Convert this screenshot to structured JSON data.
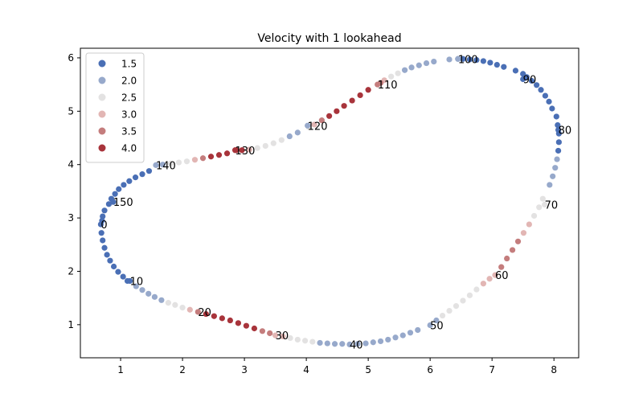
{
  "chart_data": {
    "type": "scatter",
    "title": "Velocity with 1 lookahead",
    "xlabel": "",
    "ylabel": "",
    "xlim": [
      0.35,
      8.4
    ],
    "ylim": [
      0.38,
      6.18
    ],
    "xticks": [
      1,
      2,
      3,
      4,
      5,
      6,
      7,
      8
    ],
    "yticks": [
      1,
      2,
      3,
      4,
      5,
      6
    ],
    "grid": false,
    "legend_position": "upper-left",
    "legend": [
      {
        "label": "1.5",
        "value": 1.5,
        "color": "#4a6fb5"
      },
      {
        "label": "2.0",
        "value": 2.0,
        "color": "#97a9cb"
      },
      {
        "label": "2.5",
        "value": 2.5,
        "color": "#e3e2e2"
      },
      {
        "label": "3.0",
        "value": 3.0,
        "color": "#e2b6b4"
      },
      {
        "label": "3.5",
        "value": 3.5,
        "color": "#c47d7d"
      },
      {
        "label": "4.0",
        "value": 4.0,
        "color": "#a8343b"
      }
    ],
    "annotations": [
      {
        "label": "0",
        "x": 0.68,
        "y": 2.88
      },
      {
        "label": "10",
        "x": 1.15,
        "y": 1.82
      },
      {
        "label": "20",
        "x": 2.25,
        "y": 1.24
      },
      {
        "label": "30",
        "x": 3.5,
        "y": 0.8
      },
      {
        "label": "40",
        "x": 4.7,
        "y": 0.63
      },
      {
        "label": "50",
        "x": 6.0,
        "y": 0.99
      },
      {
        "label": "60",
        "x": 7.05,
        "y": 1.93
      },
      {
        "label": "70",
        "x": 7.85,
        "y": 3.25
      },
      {
        "label": "80",
        "x": 8.07,
        "y": 4.65
      },
      {
        "label": "90",
        "x": 7.5,
        "y": 5.6
      },
      {
        "label": "100",
        "x": 6.45,
        "y": 5.98
      },
      {
        "label": "110",
        "x": 5.15,
        "y": 5.5
      },
      {
        "label": "120",
        "x": 4.02,
        "y": 4.73
      },
      {
        "label": "130",
        "x": 2.85,
        "y": 4.27
      },
      {
        "label": "140",
        "x": 1.57,
        "y": 3.99
      },
      {
        "label": "150",
        "x": 0.88,
        "y": 3.3
      }
    ],
    "points": [
      {
        "x": 0.68,
        "y": 2.88,
        "v": 1.5
      },
      {
        "x": 0.69,
        "y": 2.72,
        "v": 1.5
      },
      {
        "x": 0.71,
        "y": 2.58,
        "v": 1.5
      },
      {
        "x": 0.74,
        "y": 2.44,
        "v": 1.5
      },
      {
        "x": 0.78,
        "y": 2.31,
        "v": 1.5
      },
      {
        "x": 0.83,
        "y": 2.2,
        "v": 1.5
      },
      {
        "x": 0.89,
        "y": 2.09,
        "v": 1.5
      },
      {
        "x": 0.96,
        "y": 1.99,
        "v": 1.5
      },
      {
        "x": 1.04,
        "y": 1.9,
        "v": 1.5
      },
      {
        "x": 1.11,
        "y": 1.82,
        "v": 1.5
      },
      {
        "x": 1.15,
        "y": 1.82,
        "v": 1.5
      },
      {
        "x": 1.25,
        "y": 1.72,
        "v": 2.0
      },
      {
        "x": 1.35,
        "y": 1.65,
        "v": 2.0
      },
      {
        "x": 1.45,
        "y": 1.58,
        "v": 2.0
      },
      {
        "x": 1.55,
        "y": 1.52,
        "v": 2.0
      },
      {
        "x": 1.66,
        "y": 1.46,
        "v": 2.0
      },
      {
        "x": 1.77,
        "y": 1.41,
        "v": 2.5
      },
      {
        "x": 1.88,
        "y": 1.37,
        "v": 2.5
      },
      {
        "x": 2.0,
        "y": 1.32,
        "v": 2.5
      },
      {
        "x": 2.12,
        "y": 1.28,
        "v": 3.0
      },
      {
        "x": 2.25,
        "y": 1.24,
        "v": 3.5
      },
      {
        "x": 2.38,
        "y": 1.2,
        "v": 4.0
      },
      {
        "x": 2.51,
        "y": 1.16,
        "v": 4.0
      },
      {
        "x": 2.64,
        "y": 1.12,
        "v": 4.0
      },
      {
        "x": 2.77,
        "y": 1.08,
        "v": 4.0
      },
      {
        "x": 2.9,
        "y": 1.03,
        "v": 4.0
      },
      {
        "x": 3.03,
        "y": 0.98,
        "v": 4.0
      },
      {
        "x": 3.16,
        "y": 0.93,
        "v": 4.0
      },
      {
        "x": 3.29,
        "y": 0.88,
        "v": 3.5
      },
      {
        "x": 3.41,
        "y": 0.84,
        "v": 3.5
      },
      {
        "x": 3.5,
        "y": 0.8,
        "v": 3.0
      },
      {
        "x": 3.62,
        "y": 0.78,
        "v": 3.0
      },
      {
        "x": 3.74,
        "y": 0.75,
        "v": 2.5
      },
      {
        "x": 3.86,
        "y": 0.72,
        "v": 2.5
      },
      {
        "x": 3.98,
        "y": 0.7,
        "v": 2.5
      },
      {
        "x": 4.1,
        "y": 0.68,
        "v": 2.5
      },
      {
        "x": 4.22,
        "y": 0.66,
        "v": 2.0
      },
      {
        "x": 4.34,
        "y": 0.65,
        "v": 2.0
      },
      {
        "x": 4.46,
        "y": 0.64,
        "v": 2.0
      },
      {
        "x": 4.58,
        "y": 0.64,
        "v": 2.0
      },
      {
        "x": 4.7,
        "y": 0.63,
        "v": 2.0
      },
      {
        "x": 4.83,
        "y": 0.64,
        "v": 2.0
      },
      {
        "x": 4.96,
        "y": 0.65,
        "v": 2.0
      },
      {
        "x": 5.08,
        "y": 0.67,
        "v": 2.0
      },
      {
        "x": 5.2,
        "y": 0.69,
        "v": 2.0
      },
      {
        "x": 5.32,
        "y": 0.72,
        "v": 2.0
      },
      {
        "x": 5.44,
        "y": 0.76,
        "v": 2.0
      },
      {
        "x": 5.56,
        "y": 0.8,
        "v": 2.0
      },
      {
        "x": 5.68,
        "y": 0.85,
        "v": 2.0
      },
      {
        "x": 5.8,
        "y": 0.9,
        "v": 2.0
      },
      {
        "x": 6.0,
        "y": 0.99,
        "v": 2.0
      },
      {
        "x": 6.1,
        "y": 1.08,
        "v": 2.0
      },
      {
        "x": 6.2,
        "y": 1.17,
        "v": 2.5
      },
      {
        "x": 6.31,
        "y": 1.26,
        "v": 2.5
      },
      {
        "x": 6.42,
        "y": 1.35,
        "v": 2.5
      },
      {
        "x": 6.53,
        "y": 1.45,
        "v": 2.5
      },
      {
        "x": 6.64,
        "y": 1.55,
        "v": 2.5
      },
      {
        "x": 6.75,
        "y": 1.66,
        "v": 2.5
      },
      {
        "x": 6.86,
        "y": 1.77,
        "v": 3.0
      },
      {
        "x": 6.96,
        "y": 1.86,
        "v": 3.0
      },
      {
        "x": 7.05,
        "y": 1.93,
        "v": 3.0
      },
      {
        "x": 7.15,
        "y": 2.08,
        "v": 3.5
      },
      {
        "x": 7.24,
        "y": 2.24,
        "v": 3.5
      },
      {
        "x": 7.33,
        "y": 2.4,
        "v": 3.5
      },
      {
        "x": 7.42,
        "y": 2.56,
        "v": 3.5
      },
      {
        "x": 7.51,
        "y": 2.72,
        "v": 3.0
      },
      {
        "x": 7.6,
        "y": 2.88,
        "v": 3.0
      },
      {
        "x": 7.68,
        "y": 3.04,
        "v": 2.5
      },
      {
        "x": 7.76,
        "y": 3.2,
        "v": 2.5
      },
      {
        "x": 7.82,
        "y": 3.36,
        "v": 2.5
      },
      {
        "x": 7.85,
        "y": 3.25,
        "v": 2.5
      },
      {
        "x": 7.93,
        "y": 3.62,
        "v": 2.0
      },
      {
        "x": 7.98,
        "y": 3.78,
        "v": 2.0
      },
      {
        "x": 8.02,
        "y": 3.94,
        "v": 2.0
      },
      {
        "x": 8.05,
        "y": 4.1,
        "v": 2.0
      },
      {
        "x": 8.07,
        "y": 4.26,
        "v": 1.5
      },
      {
        "x": 8.08,
        "y": 4.42,
        "v": 1.5
      },
      {
        "x": 8.08,
        "y": 4.58,
        "v": 1.5
      },
      {
        "x": 8.06,
        "y": 4.74,
        "v": 1.5
      },
      {
        "x": 8.04,
        "y": 4.9,
        "v": 1.5
      },
      {
        "x": 8.07,
        "y": 4.65,
        "v": 1.5
      },
      {
        "x": 7.97,
        "y": 5.05,
        "v": 1.5
      },
      {
        "x": 7.92,
        "y": 5.18,
        "v": 1.5
      },
      {
        "x": 7.86,
        "y": 5.29,
        "v": 1.5
      },
      {
        "x": 7.79,
        "y": 5.4,
        "v": 1.5
      },
      {
        "x": 7.72,
        "y": 5.49,
        "v": 1.5
      },
      {
        "x": 7.64,
        "y": 5.57,
        "v": 1.5
      },
      {
        "x": 7.56,
        "y": 5.64,
        "v": 1.5
      },
      {
        "x": 7.5,
        "y": 5.6,
        "v": 1.5
      },
      {
        "x": 7.38,
        "y": 5.76,
        "v": 1.5
      },
      {
        "x": 7.5,
        "y": 5.7,
        "v": 1.5
      },
      {
        "x": 7.19,
        "y": 5.83,
        "v": 1.5
      },
      {
        "x": 7.08,
        "y": 5.87,
        "v": 1.5
      },
      {
        "x": 6.97,
        "y": 5.91,
        "v": 1.5
      },
      {
        "x": 6.86,
        "y": 5.94,
        "v": 1.5
      },
      {
        "x": 6.75,
        "y": 5.96,
        "v": 1.5
      },
      {
        "x": 6.64,
        "y": 5.97,
        "v": 1.5
      },
      {
        "x": 6.53,
        "y": 5.98,
        "v": 1.5
      },
      {
        "x": 6.45,
        "y": 5.98,
        "v": 2.0
      },
      {
        "x": 6.31,
        "y": 5.97,
        "v": 2.0
      },
      {
        "x": 6.45,
        "y": 5.98,
        "v": 2.0
      },
      {
        "x": 6.06,
        "y": 5.93,
        "v": 2.0
      },
      {
        "x": 5.94,
        "y": 5.9,
        "v": 2.0
      },
      {
        "x": 5.82,
        "y": 5.86,
        "v": 2.0
      },
      {
        "x": 5.7,
        "y": 5.82,
        "v": 2.0
      },
      {
        "x": 5.59,
        "y": 5.77,
        "v": 2.0
      },
      {
        "x": 5.48,
        "y": 5.71,
        "v": 2.5
      },
      {
        "x": 5.37,
        "y": 5.65,
        "v": 2.5
      },
      {
        "x": 5.26,
        "y": 5.58,
        "v": 3.0
      },
      {
        "x": 5.2,
        "y": 5.53,
        "v": 3.5
      },
      {
        "x": 5.15,
        "y": 5.5,
        "v": 3.5
      },
      {
        "x": 5.0,
        "y": 5.4,
        "v": 4.0
      },
      {
        "x": 4.87,
        "y": 5.3,
        "v": 4.0
      },
      {
        "x": 4.74,
        "y": 5.2,
        "v": 4.0
      },
      {
        "x": 4.61,
        "y": 5.1,
        "v": 4.0
      },
      {
        "x": 4.49,
        "y": 5.0,
        "v": 4.0
      },
      {
        "x": 4.37,
        "y": 4.91,
        "v": 4.0
      },
      {
        "x": 4.25,
        "y": 4.83,
        "v": 3.5
      },
      {
        "x": 4.13,
        "y": 4.75,
        "v": 3.0
      },
      {
        "x": 4.04,
        "y": 4.7,
        "v": 2.5
      },
      {
        "x": 4.02,
        "y": 4.73,
        "v": 2.0
      },
      {
        "x": 3.86,
        "y": 4.6,
        "v": 2.0
      },
      {
        "x": 3.73,
        "y": 4.53,
        "v": 2.0
      },
      {
        "x": 3.6,
        "y": 4.46,
        "v": 2.5
      },
      {
        "x": 3.47,
        "y": 4.4,
        "v": 2.5
      },
      {
        "x": 3.34,
        "y": 4.35,
        "v": 2.5
      },
      {
        "x": 3.21,
        "y": 4.31,
        "v": 2.5
      },
      {
        "x": 3.08,
        "y": 4.28,
        "v": 3.0
      },
      {
        "x": 2.96,
        "y": 4.27,
        "v": 4.0
      },
      {
        "x": 2.87,
        "y": 4.27,
        "v": 4.0
      },
      {
        "x": 2.85,
        "y": 4.27,
        "v": 4.0
      },
      {
        "x": 2.72,
        "y": 4.21,
        "v": 4.0
      },
      {
        "x": 2.59,
        "y": 4.18,
        "v": 4.0
      },
      {
        "x": 2.46,
        "y": 4.15,
        "v": 4.0
      },
      {
        "x": 2.33,
        "y": 4.12,
        "v": 3.5
      },
      {
        "x": 2.2,
        "y": 4.09,
        "v": 3.0
      },
      {
        "x": 2.07,
        "y": 4.06,
        "v": 2.5
      },
      {
        "x": 1.94,
        "y": 4.04,
        "v": 2.5
      },
      {
        "x": 1.81,
        "y": 4.02,
        "v": 2.5
      },
      {
        "x": 1.68,
        "y": 4.0,
        "v": 2.0
      },
      {
        "x": 1.57,
        "y": 3.99,
        "v": 2.0
      },
      {
        "x": 1.46,
        "y": 3.88,
        "v": 1.5
      },
      {
        "x": 1.35,
        "y": 3.82,
        "v": 1.5
      },
      {
        "x": 1.24,
        "y": 3.76,
        "v": 1.5
      },
      {
        "x": 1.14,
        "y": 3.69,
        "v": 1.5
      },
      {
        "x": 1.05,
        "y": 3.62,
        "v": 1.5
      },
      {
        "x": 0.97,
        "y": 3.54,
        "v": 1.5
      },
      {
        "x": 0.91,
        "y": 3.45,
        "v": 1.5
      },
      {
        "x": 0.85,
        "y": 3.36,
        "v": 1.5
      },
      {
        "x": 0.81,
        "y": 3.26,
        "v": 1.5
      },
      {
        "x": 0.88,
        "y": 3.3,
        "v": 1.5
      },
      {
        "x": 0.74,
        "y": 3.14,
        "v": 1.5
      },
      {
        "x": 0.71,
        "y": 3.03,
        "v": 1.5
      },
      {
        "x": 0.7,
        "y": 2.95,
        "v": 1.5
      }
    ]
  }
}
